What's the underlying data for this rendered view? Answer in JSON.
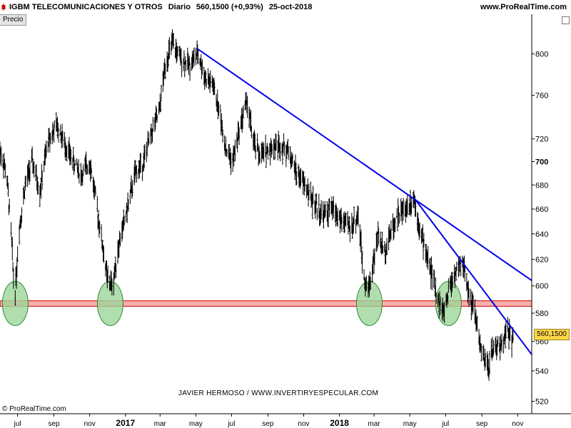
{
  "header": {
    "instrument": "IGBM TELECOMUNICACIONES Y OTROS",
    "timeframe": "Diario",
    "last_price": "560,1500 (+0,93%)",
    "date": "25-oct-2018",
    "site": "www.ProRealTime.com"
  },
  "panel_label": "Precio",
  "price_tag": "560,1500",
  "credit": "JAVIER HERMOSO / WWW.INVERTIRYESPECULAR.COM",
  "copyright": "© ProRealTime.com",
  "colors": {
    "price_bars": "#000000",
    "trendline": "#0000ee",
    "support_band_fill": "#f4a0a0",
    "support_band_stroke": "#cc0000",
    "marker_fill": "#9ed69a",
    "marker_stroke": "#2e8b2e",
    "price_tag": "#ffd84a"
  },
  "chart_data": {
    "type": "line",
    "xlabel": "",
    "ylabel": "",
    "y_scale": "log",
    "y_ticks": [
      520,
      540,
      560,
      580,
      600,
      620,
      640,
      660,
      680,
      700,
      720,
      760,
      800
    ],
    "y_tick_labels": [
      "520",
      "540",
      "560",
      "580",
      "600",
      "620",
      "640",
      "660",
      "680",
      "700",
      "720",
      "760",
      "800"
    ],
    "y_tick_bold": [
      "700"
    ],
    "ylim": [
      512,
      830
    ],
    "x_range": [
      "2016-06-01",
      "2018-11-25"
    ],
    "x_ticks": [
      {
        "label": "jul",
        "date": "2016-07-01",
        "bold": false
      },
      {
        "label": "sep",
        "date": "2016-09-01",
        "bold": false
      },
      {
        "label": "nov",
        "date": "2016-11-01",
        "bold": false
      },
      {
        "label": "2017",
        "date": "2017-01-01",
        "bold": true
      },
      {
        "label": "mar",
        "date": "2017-03-01",
        "bold": false
      },
      {
        "label": "may",
        "date": "2017-05-01",
        "bold": false
      },
      {
        "label": "jul",
        "date": "2017-07-01",
        "bold": false
      },
      {
        "label": "sep",
        "date": "2017-09-01",
        "bold": false
      },
      {
        "label": "nov",
        "date": "2017-11-01",
        "bold": false
      },
      {
        "label": "2018",
        "date": "2018-01-01",
        "bold": true
      },
      {
        "label": "mar",
        "date": "2018-03-01",
        "bold": false
      },
      {
        "label": "may",
        "date": "2018-05-01",
        "bold": false
      },
      {
        "label": "jul",
        "date": "2018-07-01",
        "bold": false
      },
      {
        "label": "sep",
        "date": "2018-09-01",
        "bold": false
      },
      {
        "label": "nov",
        "date": "2018-11-01",
        "bold": false
      }
    ],
    "series": [
      {
        "approximate_close_path": [
          [
            "2016-06-01",
            710
          ],
          [
            "2016-06-12",
            690
          ],
          [
            "2016-06-20",
            640
          ],
          [
            "2016-06-26",
            590
          ],
          [
            "2016-07-04",
            645
          ],
          [
            "2016-07-14",
            680
          ],
          [
            "2016-07-26",
            700
          ],
          [
            "2016-08-08",
            675
          ],
          [
            "2016-08-22",
            718
          ],
          [
            "2016-09-06",
            732
          ],
          [
            "2016-09-20",
            715
          ],
          [
            "2016-10-04",
            700
          ],
          [
            "2016-10-18",
            688
          ],
          [
            "2016-11-01",
            700
          ],
          [
            "2016-11-10",
            672
          ],
          [
            "2016-11-20",
            640
          ],
          [
            "2016-12-01",
            605
          ],
          [
            "2016-12-10",
            600
          ],
          [
            "2016-12-20",
            630
          ],
          [
            "2017-01-04",
            660
          ],
          [
            "2017-01-18",
            690
          ],
          [
            "2017-02-01",
            700
          ],
          [
            "2017-02-14",
            725
          ],
          [
            "2017-02-28",
            745
          ],
          [
            "2017-03-10",
            790
          ],
          [
            "2017-03-22",
            810
          ],
          [
            "2017-04-05",
            795
          ],
          [
            "2017-04-20",
            790
          ],
          [
            "2017-05-05",
            800
          ],
          [
            "2017-05-18",
            775
          ],
          [
            "2017-05-30",
            770
          ],
          [
            "2017-06-10",
            745
          ],
          [
            "2017-06-22",
            710
          ],
          [
            "2017-07-03",
            700
          ],
          [
            "2017-07-15",
            730
          ],
          [
            "2017-07-27",
            755
          ],
          [
            "2017-08-08",
            715
          ],
          [
            "2017-08-20",
            705
          ],
          [
            "2017-09-05",
            712
          ],
          [
            "2017-09-20",
            715
          ],
          [
            "2017-10-05",
            710
          ],
          [
            "2017-10-20",
            690
          ],
          [
            "2017-11-03",
            680
          ],
          [
            "2017-11-18",
            665
          ],
          [
            "2017-12-04",
            655
          ],
          [
            "2017-12-20",
            660
          ],
          [
            "2018-01-05",
            650
          ],
          [
            "2018-01-20",
            645
          ],
          [
            "2018-02-02",
            655
          ],
          [
            "2018-02-10",
            615
          ],
          [
            "2018-02-18",
            595
          ],
          [
            "2018-02-25",
            610
          ],
          [
            "2018-03-08",
            640
          ],
          [
            "2018-03-18",
            625
          ],
          [
            "2018-03-28",
            640
          ],
          [
            "2018-04-10",
            655
          ],
          [
            "2018-04-24",
            660
          ],
          [
            "2018-05-08",
            670
          ],
          [
            "2018-05-20",
            640
          ],
          [
            "2018-06-04",
            615
          ],
          [
            "2018-06-18",
            590
          ],
          [
            "2018-06-28",
            580
          ],
          [
            "2018-07-08",
            600
          ],
          [
            "2018-07-18",
            610
          ],
          [
            "2018-07-30",
            618
          ],
          [
            "2018-08-10",
            595
          ],
          [
            "2018-08-22",
            575
          ],
          [
            "2018-09-02",
            548
          ],
          [
            "2018-09-12",
            542
          ],
          [
            "2018-09-22",
            558
          ],
          [
            "2018-10-02",
            555
          ],
          [
            "2018-10-12",
            568
          ],
          [
            "2018-10-25",
            560
          ]
        ]
      }
    ],
    "annotations": {
      "trendlines": [
        {
          "from": [
            "2017-05-04",
            805
          ],
          "to": [
            "2018-11-25",
            604
          ]
        },
        {
          "from": [
            "2018-05-10",
            668
          ],
          "to": [
            "2018-11-25",
            551
          ]
        }
      ],
      "support_band": {
        "low": 585,
        "high": 589
      },
      "markers": [
        "2016-06-27",
        "2016-12-06",
        "2018-02-21",
        "2018-07-06"
      ]
    }
  }
}
